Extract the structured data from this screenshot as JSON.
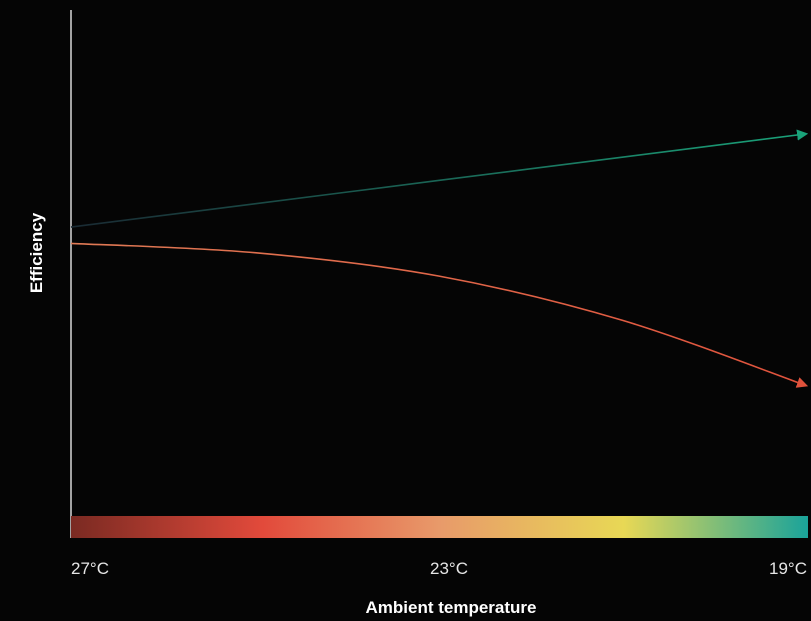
{
  "chart_data": {
    "type": "line",
    "title": "",
    "xlabel": "Ambient temperature",
    "ylabel": "Efficiency",
    "x_ticks": [
      "27°C",
      "23°C",
      "19°C"
    ],
    "x": [
      27,
      25,
      23,
      21,
      19
    ],
    "xlim": [
      27,
      19
    ],
    "ylim": [
      0,
      1
    ],
    "grid": false,
    "legend": "none",
    "series": [
      {
        "color": "#1aa37a",
        "values": [
          0.62,
          0.67,
          0.72,
          0.77,
          0.82
        ]
      },
      {
        "color": "#e0523c",
        "values": [
          0.585,
          0.565,
          0.515,
          0.42,
          0.28
        ]
      }
    ],
    "colorbar": {
      "stops": [
        "#7a2a22",
        "#e24a3b",
        "#e89a6a",
        "#e8d855",
        "#1aa39a"
      ]
    }
  }
}
